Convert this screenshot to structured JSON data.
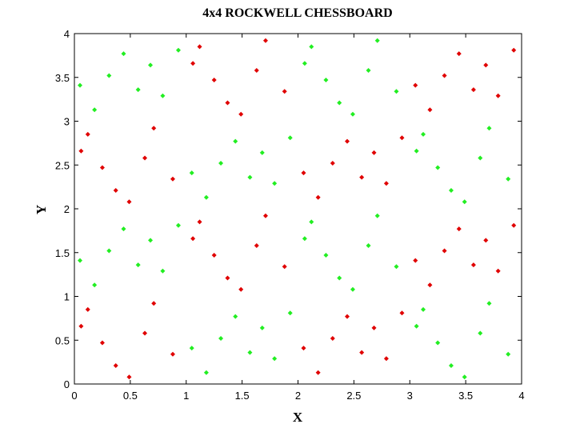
{
  "chart_data": {
    "type": "scatter",
    "title": "4x4 ROCKWELL CHESSBOARD",
    "x_label": "X",
    "y_label": "Y",
    "xlim": [
      0,
      4
    ],
    "ylim": [
      0,
      4
    ],
    "xticks": [
      0,
      0.5,
      1,
      1.5,
      2,
      2.5,
      3,
      3.5,
      4
    ],
    "yticks": [
      0,
      0.5,
      1,
      1.5,
      2,
      2.5,
      3,
      3.5,
      4
    ],
    "grid": false,
    "series": [
      {
        "color": "#e00000",
        "x": [
          0.12,
          0.37,
          0.63,
          0.88,
          0.25,
          0.71,
          0.49,
          0.06,
          2.18,
          2.44,
          2.79,
          2.93,
          2.31,
          2.57,
          2.68,
          2.05,
          1.12,
          1.37,
          1.63,
          1.88,
          1.25,
          1.71,
          1.49,
          1.06,
          3.18,
          3.44,
          3.79,
          3.93,
          3.31,
          3.57,
          3.68,
          3.05,
          0.12,
          0.37,
          0.63,
          0.88,
          0.25,
          0.71,
          0.49,
          0.06,
          2.18,
          2.44,
          2.79,
          2.93,
          2.31,
          2.57,
          2.68,
          2.05,
          1.12,
          1.37,
          1.63,
          1.88,
          1.25,
          1.71,
          1.49,
          1.06,
          3.18,
          3.44,
          3.79,
          3.93,
          3.31,
          3.57,
          3.68,
          3.05
        ],
        "y": [
          0.85,
          0.21,
          0.58,
          0.34,
          0.47,
          0.92,
          0.08,
          0.66,
          0.13,
          0.77,
          0.29,
          0.81,
          0.52,
          0.36,
          0.64,
          0.41,
          1.85,
          1.21,
          1.58,
          1.34,
          1.47,
          1.92,
          1.08,
          1.66,
          1.13,
          1.77,
          1.29,
          1.81,
          1.52,
          1.36,
          1.64,
          1.41,
          2.85,
          2.21,
          2.58,
          2.34,
          2.47,
          2.92,
          2.08,
          2.66,
          2.13,
          2.77,
          2.29,
          2.81,
          2.52,
          2.36,
          2.64,
          2.41,
          3.85,
          3.21,
          3.58,
          3.34,
          3.47,
          3.92,
          3.08,
          3.66,
          3.13,
          3.77,
          3.29,
          3.81,
          3.52,
          3.36,
          3.64,
          3.41
        ]
      },
      {
        "color": "#22ee22",
        "x": [
          1.18,
          1.44,
          1.79,
          1.93,
          1.31,
          1.57,
          1.68,
          1.05,
          3.12,
          3.37,
          3.63,
          3.88,
          3.25,
          3.71,
          3.49,
          3.06,
          0.18,
          0.44,
          0.79,
          0.93,
          0.31,
          0.57,
          0.68,
          0.05,
          2.12,
          2.37,
          2.63,
          2.88,
          2.25,
          2.71,
          2.49,
          2.06,
          1.18,
          1.44,
          1.79,
          1.93,
          1.31,
          1.57,
          1.68,
          1.05,
          3.12,
          3.37,
          3.63,
          3.88,
          3.25,
          3.71,
          3.49,
          3.06,
          0.18,
          0.44,
          0.79,
          0.93,
          0.31,
          0.57,
          0.68,
          0.05,
          2.12,
          2.37,
          2.63,
          2.88,
          2.25,
          2.71,
          2.49,
          2.06
        ],
        "y": [
          0.13,
          0.77,
          0.29,
          0.81,
          0.52,
          0.36,
          0.64,
          0.41,
          0.85,
          0.21,
          0.58,
          0.34,
          0.47,
          0.92,
          0.08,
          0.66,
          1.13,
          1.77,
          1.29,
          1.81,
          1.52,
          1.36,
          1.64,
          1.41,
          1.85,
          1.21,
          1.58,
          1.34,
          1.47,
          1.92,
          1.08,
          1.66,
          2.13,
          2.77,
          2.29,
          2.81,
          2.52,
          2.36,
          2.64,
          2.41,
          2.85,
          2.21,
          2.58,
          2.34,
          2.47,
          2.92,
          2.08,
          2.66,
          3.13,
          3.77,
          3.29,
          3.81,
          3.52,
          3.36,
          3.64,
          3.41,
          3.85,
          3.21,
          3.58,
          3.34,
          3.47,
          3.92,
          3.08,
          3.66
        ]
      }
    ]
  }
}
